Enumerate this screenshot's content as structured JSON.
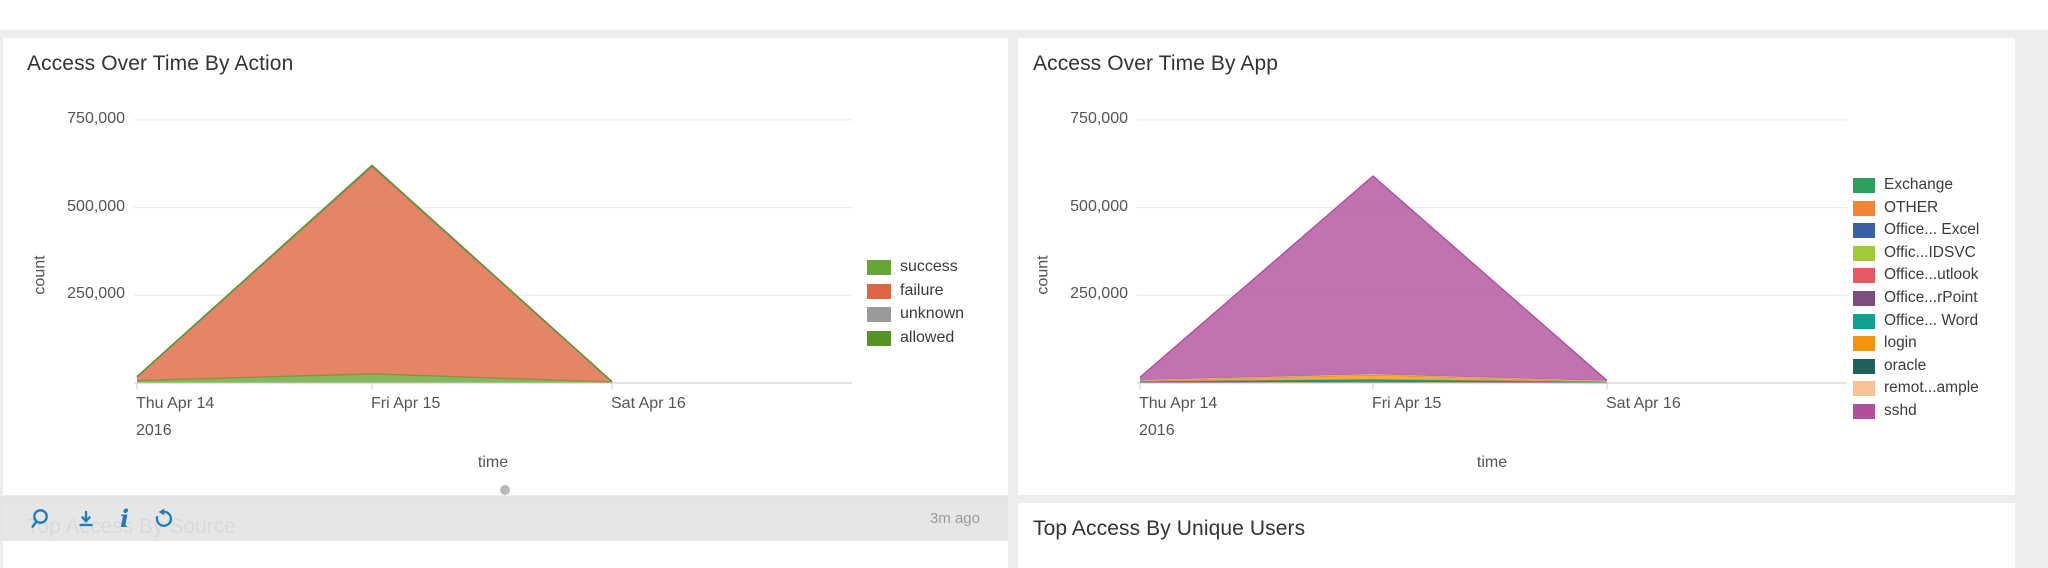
{
  "panels": {
    "action": {
      "title": "Access Over Time By Action"
    },
    "app": {
      "title": "Access Over Time By App"
    },
    "source": {
      "title": "Top Access By Source",
      "refresh_age": "3m ago"
    },
    "users": {
      "title": "Top Access By Unique Users"
    }
  },
  "toolbar": {
    "icons": [
      "open-in-search-icon",
      "export-download-icon",
      "info-icon",
      "refresh-icon"
    ],
    "accent_color": "#1a7dc0"
  },
  "colors": {
    "page_background": "#ededf0",
    "panel_background": "#ffffff",
    "grid_line": "#e8e8e8",
    "axis_line": "#c8c8c8",
    "text_primary": "#333333",
    "text_axis": "#545454"
  },
  "chart_data": [
    {
      "type": "area",
      "stacked": true,
      "title": "Access Over Time By Action",
      "xlabel": "time",
      "ylabel": "count",
      "x_categories": [
        "Thu Apr 14 2016",
        "Fri Apr 15",
        "Sat Apr 16"
      ],
      "x_tick_lines": [
        [
          "Thu Apr 14",
          "2016"
        ],
        [
          "Fri Apr 15"
        ],
        [
          "Sat Apr 16"
        ]
      ],
      "y_ticks": [
        250000,
        500000,
        750000
      ],
      "y_tick_labels": [
        "250,000",
        "500,000",
        "750,000"
      ],
      "ylim": [
        0,
        820000
      ],
      "grid": "horizontal",
      "legend_position": "right",
      "series": [
        {
          "name": "success",
          "color": "#65a637",
          "values": [
            7000,
            26000,
            3000
          ]
        },
        {
          "name": "failure",
          "color": "#dd6742",
          "values": [
            10000,
            590000,
            500
          ]
        },
        {
          "name": "unknown",
          "color": "#999999",
          "values": [
            500,
            2500,
            200
          ]
        },
        {
          "name": "allowed",
          "color": "#569428",
          "values": [
            500,
            2000,
            200
          ]
        }
      ]
    },
    {
      "type": "area",
      "stacked": true,
      "title": "Access Over Time By App",
      "xlabel": "time",
      "ylabel": "count",
      "x_categories": [
        "Thu Apr 14 2016",
        "Fri Apr 15",
        "Sat Apr 16"
      ],
      "x_tick_lines": [
        [
          "Thu Apr 14",
          "2016"
        ],
        [
          "Fri Apr 15"
        ],
        [
          "Sat Apr 16"
        ]
      ],
      "y_ticks": [
        250000,
        500000,
        750000
      ],
      "y_tick_labels": [
        "250,000",
        "500,000",
        "750,000"
      ],
      "ylim": [
        0,
        820000
      ],
      "grid": "horizontal",
      "legend_position": "right",
      "series": [
        {
          "name": "Exchange",
          "color": "#2f9e5f",
          "values": [
            500,
            1500,
            300
          ]
        },
        {
          "name": "OTHER",
          "color": "#f28436",
          "values": [
            800,
            2000,
            400
          ]
        },
        {
          "name": "Office... Excel",
          "color": "#3b61a5",
          "values": [
            300,
            800,
            200
          ]
        },
        {
          "name": "Offic...IDSVC",
          "color": "#a2c937",
          "values": [
            200,
            500,
            100
          ]
        },
        {
          "name": "Office...utlook",
          "color": "#e75862",
          "values": [
            300,
            900,
            200
          ]
        },
        {
          "name": "Office...rPoint",
          "color": "#7e4d84",
          "values": [
            200,
            500,
            100
          ]
        },
        {
          "name": "Office... Word",
          "color": "#0da390",
          "values": [
            2000,
            3500,
            1800
          ]
        },
        {
          "name": "login",
          "color": "#f6930f",
          "values": [
            3500,
            14000,
            2500
          ]
        },
        {
          "name": "oracle",
          "color": "#20615b",
          "values": [
            300,
            700,
            200
          ]
        },
        {
          "name": "remot...ample",
          "color": "#fac395",
          "values": [
            200,
            400,
            100
          ]
        },
        {
          "name": "sshd",
          "color": "#b0509b",
          "values": [
            8000,
            565000,
            1000
          ]
        }
      ]
    }
  ]
}
